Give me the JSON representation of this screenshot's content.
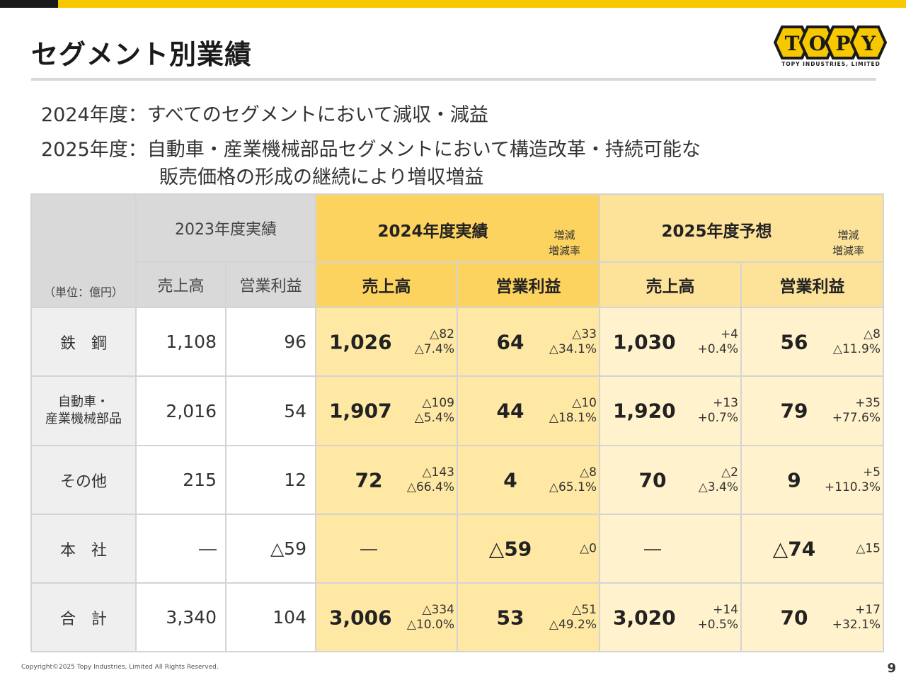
{
  "title": "セグメント別業績",
  "logo": {
    "text": "TOPY",
    "subtitle": "TOPY INDUSTRIES, LIMITED"
  },
  "summary": {
    "line1": "2024年度：すべてのセグメントにおいて減収・減益",
    "line2": "2025年度：自動車・産業機械部品セグメントにおいて構造改革・持続可能な",
    "line3": "販売価格の形成の継続により増収増益"
  },
  "table": {
    "unit": "（単位：億円）",
    "year2023": "2023年度実績",
    "year2024": "2024年度実績",
    "year2025": "2025年度予想",
    "diff_note_1": "増減",
    "diff_note_2": "増減率",
    "col_sales": "売上高",
    "col_profit": "営業利益",
    "rows": [
      {
        "label": "鉄　鋼",
        "s23": "1,108",
        "p23": "96",
        "s24": "1,026",
        "s24d": "△82",
        "s24r": "△7.4%",
        "p24": "64",
        "p24d": "△33",
        "p24r": "△34.1%",
        "s25": "1,030",
        "s25d": "+4",
        "s25r": "+0.4%",
        "p25": "56",
        "p25d": "△8",
        "p25r": "△11.9%"
      },
      {
        "label": "自動車・",
        "label2": "産業機械部品",
        "s23": "2,016",
        "p23": "54",
        "s24": "1,907",
        "s24d": "△109",
        "s24r": "△5.4%",
        "p24": "44",
        "p24d": "△10",
        "p24r": "△18.1%",
        "s25": "1,920",
        "s25d": "+13",
        "s25r": "+0.7%",
        "p25": "79",
        "p25d": "+35",
        "p25r": "+77.6%"
      },
      {
        "label": "その他",
        "s23": "215",
        "p23": "12",
        "s24": "72",
        "s24d": "△143",
        "s24r": "△66.4%",
        "p24": "4",
        "p24d": "△8",
        "p24r": "△65.1%",
        "s25": "70",
        "s25d": "△2",
        "s25r": "△3.4%",
        "p25": "9",
        "p25d": "+5",
        "p25r": "+110.3%"
      },
      {
        "label": "本　社",
        "s23": "―",
        "p23": "△59",
        "s24": "―",
        "p24": "△59",
        "p24d": "△0",
        "s25": "―",
        "p25": "△74",
        "p25d": "△15"
      },
      {
        "label": "合　計",
        "s23": "3,340",
        "p23": "104",
        "s24": "3,006",
        "s24d": "△334",
        "s24r": "△10.0%",
        "p24": "53",
        "p24d": "△51",
        "p24r": "△49.2%",
        "s25": "3,020",
        "s25d": "+14",
        "s25r": "+0.5%",
        "p25": "70",
        "p25d": "+17",
        "p25r": "+32.1%"
      }
    ]
  },
  "footer": {
    "copyright": "Copyright©2025 Topy Industries, Limited All Rights Reserved.",
    "page": "9"
  },
  "colors": {
    "accent_yellow": "#f7c800",
    "fy2024": "#fdd35f",
    "fy2025": "#fde39a"
  }
}
